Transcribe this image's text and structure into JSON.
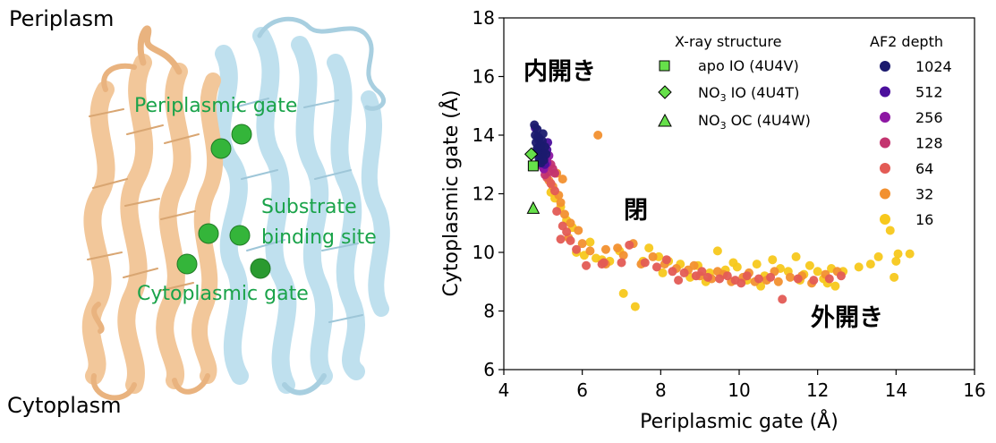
{
  "structure_panel": {
    "periplasm_label": "Periplasm",
    "cytoplasm_label": "Cytoplasm",
    "periplasmic_gate_label": "Periplasmic gate",
    "substrate_site_label_line1": "Substrate",
    "substrate_site_label_line2": "binding site",
    "cytoplasmic_gate_label": "Cytoplasmic gate",
    "colors": {
      "domain_a": "#f2c79a",
      "domain_b": "#bfe0ee",
      "sphere": "#34b53a",
      "label_green": "#1aa34a"
    }
  },
  "plot_panel": {
    "region_labels": {
      "inward_open": "内開き",
      "closed": "閉",
      "outward_open": "外開き"
    },
    "legend": {
      "xray_title": "X-ray structure",
      "xray_entries": [
        {
          "marker": "square",
          "label": "apo IO (4U4V)"
        },
        {
          "marker": "diamond",
          "label_prefix": "NO",
          "label_sub": "3",
          "label_suffix": " IO (4U4T)"
        },
        {
          "marker": "triangle",
          "label_prefix": "NO",
          "label_sub": "3",
          "label_suffix": " OC (4U4W)"
        }
      ],
      "depth_title": "AF2 depth",
      "depth_entries": [
        {
          "label": "1024",
          "color": "#1b1a6e"
        },
        {
          "label": "512",
          "color": "#4b0f9c"
        },
        {
          "label": "256",
          "color": "#8d17a3"
        },
        {
          "label": "128",
          "color": "#c3346f"
        },
        {
          "label": "64",
          "color": "#e35b55"
        },
        {
          "label": "32",
          "color": "#f2902f"
        },
        {
          "label": "16",
          "color": "#f7c81c"
        }
      ]
    }
  },
  "chart_data": {
    "type": "scatter",
    "xlabel": "Periplasmic gate (Å)",
    "ylabel": "Cytoplasmic gate (Å)",
    "xlim": [
      4,
      16
    ],
    "ylim": [
      6,
      18
    ],
    "xticks": [
      "4",
      "6",
      "8",
      "10",
      "12",
      "14",
      "16"
    ],
    "yticks": [
      "6",
      "8",
      "10",
      "12",
      "14",
      "16",
      "18"
    ],
    "xray_points": [
      {
        "name": "apo IO (4U4V)",
        "marker": "square",
        "x": 4.75,
        "y": 12.95
      },
      {
        "name": "NO3 IO (4U4T)",
        "marker": "diamond",
        "x": 4.7,
        "y": 13.35
      },
      {
        "name": "NO3 OC (4U4W)",
        "marker": "triangle",
        "x": 4.75,
        "y": 11.5
      }
    ],
    "series": [
      {
        "name": "1024",
        "color": "#1b1a6e",
        "points": [
          [
            4.78,
            14.35
          ],
          [
            4.85,
            14.2
          ],
          [
            4.8,
            14.0
          ],
          [
            4.9,
            13.9
          ],
          [
            4.82,
            13.75
          ],
          [
            4.95,
            13.65
          ],
          [
            4.88,
            13.5
          ],
          [
            5.0,
            13.4
          ],
          [
            4.92,
            13.3
          ],
          [
            5.02,
            13.15
          ],
          [
            4.85,
            13.55
          ],
          [
            4.98,
            13.8
          ],
          [
            5.05,
            13.6
          ],
          [
            4.9,
            13.2
          ],
          [
            4.95,
            13.05
          ],
          [
            5.08,
            13.35
          ],
          [
            4.86,
            13.95
          ],
          [
            5.0,
            14.05
          ]
        ]
      },
      {
        "name": "512",
        "color": "#4b0f9c",
        "points": [
          [
            4.8,
            14.25
          ],
          [
            4.88,
            13.85
          ],
          [
            4.95,
            13.7
          ],
          [
            4.84,
            13.45
          ],
          [
            5.0,
            13.25
          ],
          [
            5.1,
            13.5
          ],
          [
            4.92,
            13.1
          ],
          [
            5.05,
            13.0
          ],
          [
            4.9,
            13.62
          ],
          [
            5.12,
            13.75
          ]
        ]
      },
      {
        "name": "256",
        "color": "#8d17a3",
        "points": [
          [
            4.95,
            13.35
          ],
          [
            5.05,
            13.2
          ],
          [
            5.1,
            13.05
          ],
          [
            4.98,
            12.95
          ],
          [
            5.15,
            13.3
          ],
          [
            5.02,
            12.85
          ]
        ]
      },
      {
        "name": "128",
        "color": "#c3346f",
        "points": [
          [
            5.1,
            13.15
          ],
          [
            5.2,
            13.0
          ],
          [
            5.0,
            12.9
          ],
          [
            5.15,
            12.75
          ],
          [
            5.25,
            12.85
          ],
          [
            5.05,
            12.65
          ],
          [
            5.3,
            12.7
          ]
        ]
      },
      {
        "name": "64",
        "color": "#e35b55",
        "points": [
          [
            5.1,
            12.55
          ],
          [
            5.2,
            12.35
          ],
          [
            5.3,
            12.1
          ],
          [
            5.35,
            11.4
          ],
          [
            5.5,
            10.9
          ],
          [
            5.7,
            10.4
          ],
          [
            5.85,
            10.1
          ],
          [
            6.1,
            9.55
          ],
          [
            6.5,
            9.6
          ],
          [
            7.2,
            10.25
          ],
          [
            7.6,
            9.65
          ],
          [
            7.9,
            9.5
          ],
          [
            8.3,
            9.35
          ],
          [
            8.6,
            9.3
          ],
          [
            8.9,
            9.2
          ],
          [
            9.2,
            9.15
          ],
          [
            9.5,
            9.1
          ],
          [
            9.7,
            9.2
          ],
          [
            9.9,
            9.05
          ],
          [
            10.2,
            9.2
          ],
          [
            10.5,
            9.1
          ],
          [
            10.8,
            9.15
          ],
          [
            11.1,
            8.4
          ],
          [
            11.5,
            9.1
          ],
          [
            11.9,
            9.05
          ],
          [
            12.3,
            9.1
          ],
          [
            12.6,
            9.2
          ],
          [
            8.45,
            9.05
          ],
          [
            9.05,
            9.35
          ],
          [
            10.05,
            8.95
          ],
          [
            8.15,
            9.75
          ],
          [
            7.0,
            9.65
          ],
          [
            6.55,
            9.65
          ],
          [
            5.45,
            10.45
          ],
          [
            5.6,
            10.7
          ]
        ]
      },
      {
        "name": "32",
        "color": "#f2902f",
        "points": [
          [
            5.15,
            12.45
          ],
          [
            5.25,
            12.25
          ],
          [
            5.4,
            11.95
          ],
          [
            5.45,
            11.7
          ],
          [
            5.55,
            11.3
          ],
          [
            5.7,
            11.0
          ],
          [
            5.9,
            10.75
          ],
          [
            5.65,
            10.5
          ],
          [
            6.0,
            10.3
          ],
          [
            6.2,
            10.05
          ],
          [
            6.4,
            14.0
          ],
          [
            6.6,
            10.1
          ],
          [
            6.9,
            10.15
          ],
          [
            7.3,
            10.3
          ],
          [
            7.5,
            9.6
          ],
          [
            7.8,
            9.85
          ],
          [
            8.1,
            9.6
          ],
          [
            8.4,
            9.45
          ],
          [
            8.7,
            9.4
          ],
          [
            9.0,
            9.2
          ],
          [
            9.3,
            9.1
          ],
          [
            9.6,
            9.25
          ],
          [
            9.8,
            9.0
          ],
          [
            10.1,
            9.15
          ],
          [
            10.4,
            9.0
          ],
          [
            10.7,
            9.05
          ],
          [
            11.0,
            9.0
          ],
          [
            11.3,
            9.15
          ],
          [
            11.6,
            9.2
          ],
          [
            11.85,
            8.95
          ],
          [
            12.2,
            9.25
          ],
          [
            12.5,
            9.35
          ],
          [
            8.85,
            9.55
          ],
          [
            9.45,
            9.35
          ],
          [
            10.25,
            9.3
          ],
          [
            10.9,
            9.35
          ],
          [
            6.6,
            9.6
          ],
          [
            7.05,
            9.9
          ],
          [
            5.35,
            12.7
          ],
          [
            5.5,
            12.5
          ]
        ]
      },
      {
        "name": "16",
        "color": "#f7c81c",
        "points": [
          [
            5.2,
            12.05
          ],
          [
            5.3,
            11.85
          ],
          [
            5.45,
            11.55
          ],
          [
            5.6,
            11.1
          ],
          [
            5.75,
            10.85
          ],
          [
            5.85,
            10.0
          ],
          [
            6.05,
            9.9
          ],
          [
            6.2,
            10.35
          ],
          [
            6.35,
            9.8
          ],
          [
            6.5,
            9.75
          ],
          [
            6.7,
            9.7
          ],
          [
            6.95,
            10.05
          ],
          [
            7.05,
            8.6
          ],
          [
            7.35,
            8.15
          ],
          [
            7.55,
            9.7
          ],
          [
            7.7,
            10.15
          ],
          [
            7.95,
            9.85
          ],
          [
            8.2,
            9.7
          ],
          [
            8.5,
            9.6
          ],
          [
            8.75,
            9.15
          ],
          [
            8.95,
            9.55
          ],
          [
            9.25,
            9.3
          ],
          [
            9.45,
            10.05
          ],
          [
            9.65,
            9.4
          ],
          [
            9.95,
            9.5
          ],
          [
            10.2,
            9.05
          ],
          [
            10.45,
            9.6
          ],
          [
            10.65,
            9.2
          ],
          [
            10.85,
            9.75
          ],
          [
            11.05,
            9.45
          ],
          [
            11.25,
            9.35
          ],
          [
            11.45,
            9.85
          ],
          [
            11.65,
            9.25
          ],
          [
            11.8,
            9.55
          ],
          [
            12.0,
            9.35
          ],
          [
            12.15,
            9.1
          ],
          [
            12.35,
            9.45
          ],
          [
            12.45,
            8.85
          ],
          [
            12.65,
            9.35
          ],
          [
            13.05,
            9.5
          ],
          [
            13.35,
            9.6
          ],
          [
            13.55,
            9.85
          ],
          [
            13.85,
            10.75
          ],
          [
            13.95,
            9.15
          ],
          [
            14.0,
            9.7
          ],
          [
            14.05,
            9.95
          ],
          [
            14.35,
            9.95
          ],
          [
            8.05,
            9.3
          ],
          [
            9.15,
            9.0
          ],
          [
            9.85,
            9.65
          ],
          [
            10.55,
            8.85
          ],
          [
            11.55,
            9.05
          ],
          [
            12.25,
            8.95
          ]
        ]
      }
    ]
  }
}
